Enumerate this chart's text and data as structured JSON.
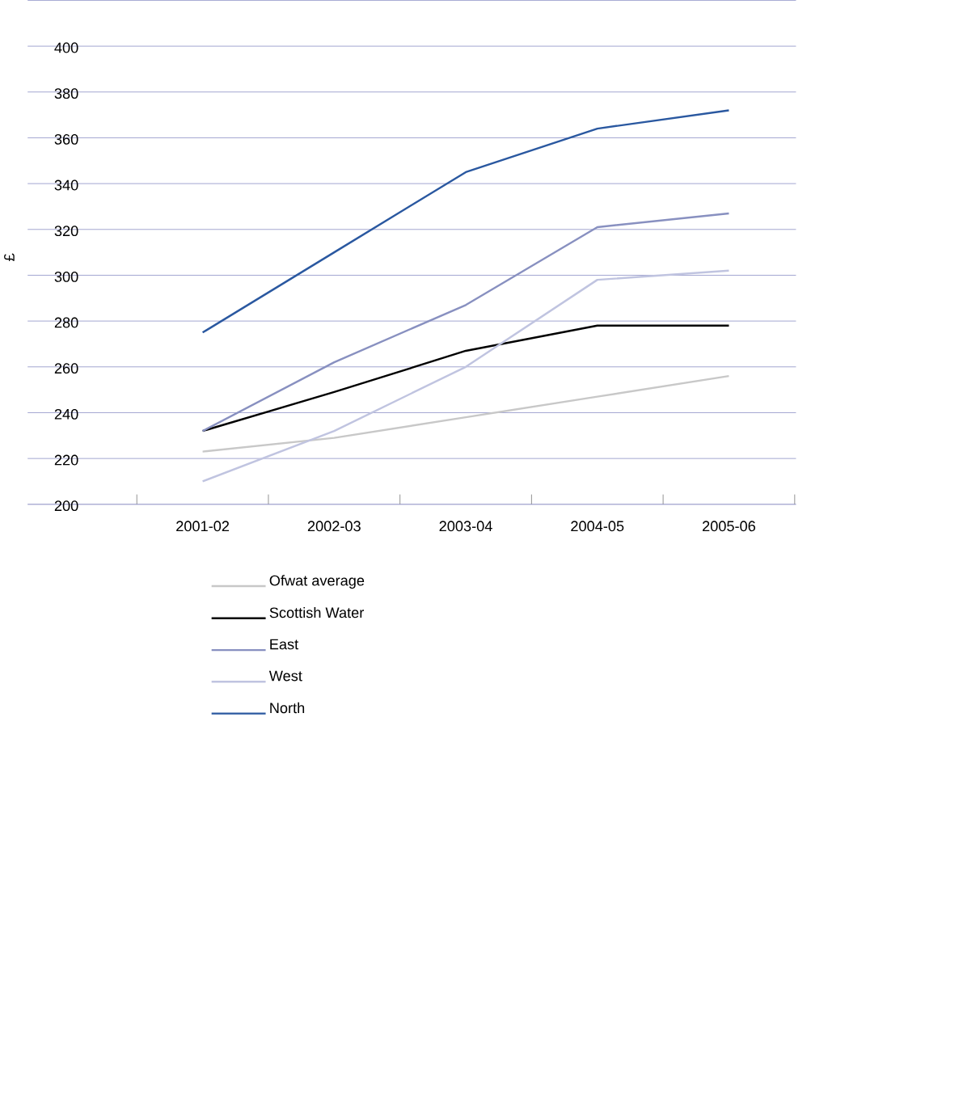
{
  "chart_data": {
    "type": "line",
    "ylabel": "£",
    "categories": [
      "2001-02",
      "2002-03",
      "2003-04",
      "2004-05",
      "2005-06"
    ],
    "series": [
      {
        "name": "Ofwat average",
        "color": "#c8c8c8",
        "values": [
          223,
          229,
          238,
          247,
          256
        ]
      },
      {
        "name": "Scottish Water",
        "color": "#000000",
        "values": [
          232,
          249,
          267,
          278,
          278
        ]
      },
      {
        "name": "East",
        "color": "#8890c0",
        "values": [
          232,
          262,
          287,
          321,
          327
        ]
      },
      {
        "name": "West",
        "color": "#c0c4e0",
        "values": [
          210,
          232,
          260,
          298,
          302
        ]
      },
      {
        "name": "North",
        "color": "#2a58a0",
        "values": [
          275,
          310,
          345,
          364,
          372
        ]
      }
    ],
    "ylim": [
      200,
      420
    ],
    "yticks": [
      200,
      220,
      240,
      260,
      280,
      300,
      320,
      340,
      360,
      380,
      400,
      {
        "value": 420,
        "label": null
      }
    ],
    "grid": "y",
    "legend": "bottom",
    "marker": "none",
    "line_style": "solid"
  }
}
